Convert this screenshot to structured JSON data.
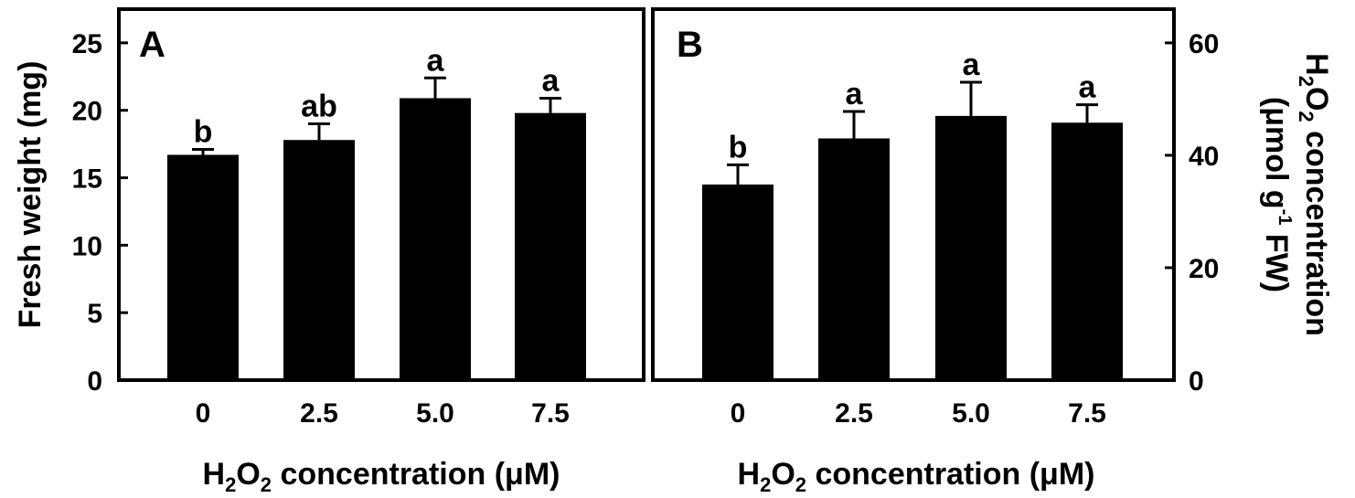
{
  "chart_data": [
    {
      "type": "bar",
      "panel_label": "A",
      "categories": [
        "0",
        "2.5",
        "5.0",
        "7.5"
      ],
      "values": [
        16.7,
        17.8,
        20.9,
        19.8
      ],
      "errors": [
        0.4,
        1.2,
        1.5,
        1.1
      ],
      "significance": [
        "b",
        "ab",
        "a",
        "a"
      ],
      "ylabel": "Fresh weight (mg)",
      "xlabel": {
        "prefix": "H",
        "sub1": "2",
        "mid": "O",
        "sub2": "2",
        "suffix": " concentration (μM)"
      },
      "ylim": [
        0,
        27.5
      ],
      "yticks": [
        0,
        5,
        10,
        15,
        20,
        25
      ],
      "y_axis_side": "left"
    },
    {
      "type": "bar",
      "panel_label": "B",
      "categories": [
        "0",
        "2.5",
        "5.0",
        "7.5"
      ],
      "values": [
        34.8,
        43.0,
        47.0,
        45.8
      ],
      "errors": [
        3.5,
        4.8,
        6.0,
        3.2
      ],
      "significance": [
        "b",
        "a",
        "a",
        "a"
      ],
      "ylabel": {
        "line1_prefix": "H",
        "line1_sub1": "2",
        "line1_mid": "O",
        "line1_sub2": "2",
        "line1_suffix": " concentration",
        "line2_prefix": "(μmol g",
        "line2_sup": "-1",
        "line2_suffix": " FW)"
      },
      "xlabel": {
        "prefix": "H",
        "sub1": "2",
        "mid": "O",
        "sub2": "2",
        "suffix": " concentration (μM)"
      },
      "ylim": [
        0,
        66
      ],
      "yticks": [
        0,
        20,
        40,
        60
      ],
      "y_axis_side": "right"
    }
  ]
}
